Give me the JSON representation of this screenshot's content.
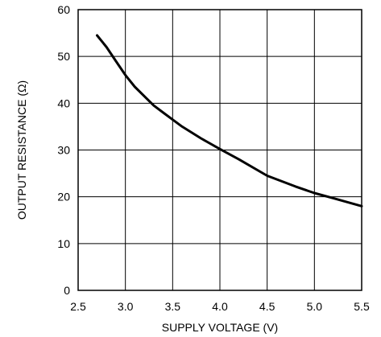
{
  "chart_data": {
    "type": "line",
    "title": "",
    "xlabel": "SUPPLY VOLTAGE (V)",
    "ylabel": "OUTPUT RESISTANCE (Ω)",
    "xlim": [
      2.5,
      5.5
    ],
    "ylim": [
      0,
      60
    ],
    "xticks": [
      2.5,
      3.0,
      3.5,
      4.0,
      4.5,
      5.0,
      5.5
    ],
    "xtick_labels": [
      "2.5",
      "3.0",
      "3.5",
      "4.0",
      "4.5",
      "5.0",
      "5.5"
    ],
    "yticks": [
      0,
      10,
      20,
      30,
      40,
      50,
      60
    ],
    "ytick_labels": [
      "0",
      "10",
      "20",
      "30",
      "40",
      "50",
      "60"
    ],
    "grid": true,
    "series": [
      {
        "x": [
          2.7,
          2.8,
          2.9,
          3.0,
          3.1,
          3.2,
          3.3,
          3.4,
          3.5,
          3.6,
          3.8,
          4.0,
          4.2,
          4.5,
          4.8,
          5.0,
          5.2,
          5.5
        ],
        "y": [
          54.5,
          52.0,
          49.0,
          46.0,
          43.5,
          41.5,
          39.5,
          38.0,
          36.5,
          35.0,
          32.5,
          30.2,
          28.0,
          24.5,
          22.2,
          20.8,
          19.7,
          18.0
        ]
      }
    ],
    "line_color": "#000000",
    "grid_color": "#000000"
  }
}
